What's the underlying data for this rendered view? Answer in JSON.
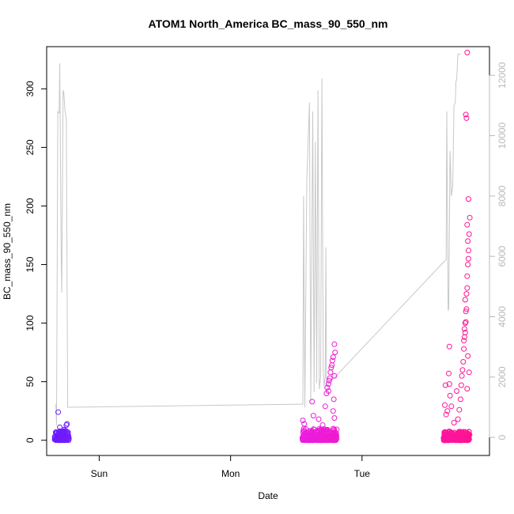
{
  "chart_data": {
    "type": "scatter",
    "title": "ATOM1 North_America BC_mass_90_550_nm",
    "xlabel": "Date",
    "ylabel": "BC_mass_90_550_nm",
    "x_ticks": [
      {
        "label": "Sun",
        "t": 1.0
      },
      {
        "label": "Mon",
        "t": 2.0
      },
      {
        "label": "Tue",
        "t": 3.0
      }
    ],
    "x_range": [
      0.6,
      3.97
    ],
    "ylim": [
      -13,
      336
    ],
    "y_ticks": [
      0,
      50,
      100,
      150,
      200,
      250,
      300
    ],
    "y2_ticks": [
      0,
      2000,
      4000,
      6000,
      8000,
      10000,
      12000
    ],
    "y2lim": [
      -600,
      12950
    ],
    "grid": false,
    "colors": {
      "axis": "#000000",
      "line_series": "#c8c8c8",
      "right_axis": "#b8b8b8",
      "point_start": "#6a1bff",
      "point_mid": "#e81ee8",
      "point_end": "#ff1493"
    },
    "line_series": {
      "name": "",
      "axis": "right",
      "points": [
        [
          0.67,
          1100
        ],
        [
          0.675,
          400
        ],
        [
          0.685,
          10800
        ],
        [
          0.695,
          10750
        ],
        [
          0.7,
          12400
        ],
        [
          0.71,
          6200
        ],
        [
          0.715,
          4800
        ],
        [
          0.725,
          11500
        ],
        [
          0.73,
          11450
        ],
        [
          0.74,
          10800
        ],
        [
          0.745,
          10700
        ],
        [
          0.75,
          10500
        ],
        [
          0.76,
          1000
        ],
        [
          0.77,
          1000
        ],
        [
          2.55,
          1100
        ],
        [
          2.555,
          8000
        ],
        [
          2.565,
          1000
        ],
        [
          2.58,
          8500
        ],
        [
          2.6,
          11100
        ],
        [
          2.61,
          1200
        ],
        [
          2.625,
          10800
        ],
        [
          2.635,
          1500
        ],
        [
          2.645,
          9800
        ],
        [
          2.655,
          1800
        ],
        [
          2.665,
          11500
        ],
        [
          2.675,
          1600
        ],
        [
          2.685,
          2000
        ],
        [
          2.695,
          11900
        ],
        [
          2.705,
          2300
        ],
        [
          2.71,
          1700
        ],
        [
          2.72,
          2000
        ],
        [
          2.725,
          6300
        ],
        [
          2.73,
          1700
        ],
        [
          3.64,
          5900
        ],
        [
          3.645,
          10800
        ],
        [
          3.655,
          4200
        ],
        [
          3.66,
          4300
        ],
        [
          3.67,
          9500
        ],
        [
          3.68,
          8000
        ],
        [
          3.69,
          8300
        ],
        [
          3.7,
          11000
        ],
        [
          3.71,
          11100
        ],
        [
          3.715,
          11800
        ],
        [
          3.72,
          11850
        ],
        [
          3.73,
          12700
        ],
        [
          3.745,
          12700
        ],
        [
          3.75,
          12700
        ]
      ]
    },
    "scatter_clusters": [
      {
        "t_start": 0.66,
        "t_end": 0.77,
        "n": 120,
        "typical_max": 8,
        "outliers": [
          [
            0.688,
            24
          ],
          [
            0.755,
            14
          ],
          [
            0.75,
            13
          ],
          [
            0.7,
            11
          ],
          [
            0.73,
            9
          ]
        ]
      },
      {
        "t_start": 2.545,
        "t_end": 2.81,
        "n": 260,
        "typical_max": 10,
        "outliers": [
          [
            2.55,
            17
          ],
          [
            2.56,
            14
          ],
          [
            2.62,
            33
          ],
          [
            2.63,
            21
          ],
          [
            2.67,
            18
          ],
          [
            2.7,
            13
          ],
          [
            2.72,
            29
          ],
          [
            2.73,
            40
          ],
          [
            2.735,
            45
          ],
          [
            2.745,
            42
          ],
          [
            2.745,
            48
          ],
          [
            2.75,
            51
          ],
          [
            2.755,
            53
          ],
          [
            2.76,
            58
          ],
          [
            2.765,
            62
          ],
          [
            2.77,
            64
          ],
          [
            2.775,
            68
          ],
          [
            2.78,
            71
          ],
          [
            2.79,
            82
          ],
          [
            2.795,
            75
          ],
          [
            2.79,
            55
          ],
          [
            2.785,
            35
          ],
          [
            2.78,
            25
          ],
          [
            2.79,
            19
          ]
        ]
      },
      {
        "t_start": 3.62,
        "t_end": 3.82,
        "n": 260,
        "typical_max": 8,
        "outliers": [
          [
            3.63,
            30
          ],
          [
            3.635,
            47
          ],
          [
            3.64,
            22
          ],
          [
            3.65,
            25
          ],
          [
            3.66,
            57
          ],
          [
            3.665,
            80
          ],
          [
            3.665,
            48
          ],
          [
            3.67,
            38
          ],
          [
            3.68,
            29
          ],
          [
            3.7,
            15
          ],
          [
            3.72,
            42
          ],
          [
            3.73,
            18
          ],
          [
            3.74,
            26
          ],
          [
            3.75,
            35
          ],
          [
            3.755,
            47
          ],
          [
            3.76,
            55
          ],
          [
            3.765,
            60
          ],
          [
            3.77,
            67
          ],
          [
            3.775,
            78
          ],
          [
            3.78,
            88
          ],
          [
            3.785,
            92
          ],
          [
            3.79,
            101
          ],
          [
            3.795,
            112
          ],
          [
            3.8,
            130
          ],
          [
            3.805,
            150
          ],
          [
            3.81,
            162
          ],
          [
            3.815,
            176
          ],
          [
            3.82,
            190
          ],
          [
            3.81,
            206
          ],
          [
            3.805,
            170
          ],
          [
            3.8,
            140
          ],
          [
            3.795,
            125
          ],
          [
            3.79,
            110
          ],
          [
            3.785,
            100
          ],
          [
            3.78,
            95
          ],
          [
            3.775,
            85
          ],
          [
            3.79,
            278
          ],
          [
            3.795,
            275
          ],
          [
            3.8,
            331
          ],
          [
            3.785,
            120
          ],
          [
            3.81,
            155
          ],
          [
            3.8,
            184
          ],
          [
            3.805,
            72
          ],
          [
            3.815,
            58
          ],
          [
            3.8,
            44
          ]
        ]
      }
    ]
  }
}
